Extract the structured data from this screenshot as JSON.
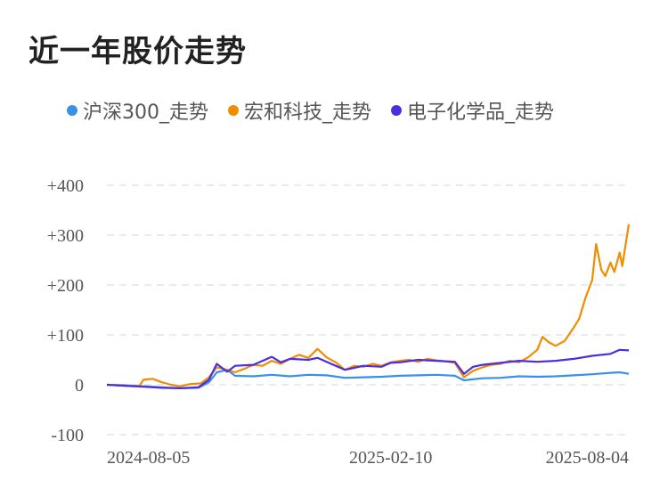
{
  "page": {
    "title": "近一年股价走势"
  },
  "colors": {
    "hs300": "#3a8fe8",
    "hongda": "#f08c00",
    "chem": "#4a2ee0",
    "grid": "#e4e4e4",
    "axis": "#555555"
  },
  "chart_data": {
    "type": "line",
    "title": "近一年股价走势",
    "xlabel": "",
    "ylabel": "",
    "ylim": [
      -100,
      400
    ],
    "yticks": [
      {
        "value": 400,
        "label": "+400"
      },
      {
        "value": 300,
        "label": "+300"
      },
      {
        "value": 200,
        "label": "+200"
      },
      {
        "value": 100,
        "label": "+100"
      },
      {
        "value": 0,
        "label": "0"
      },
      {
        "value": -100,
        "label": "-100"
      }
    ],
    "xlim": [
      "2024-07-08",
      "2025-08-11"
    ],
    "xticks": [
      "2024-08-05",
      "2025-02-10",
      "2025-08-04"
    ],
    "legend": "top",
    "grid": true,
    "series": [
      {
        "name": "沪深300_走势",
        "color": "#3a8fe8",
        "points": [
          [
            "2024-07-08",
            0
          ],
          [
            "2024-07-22",
            -1
          ],
          [
            "2024-08-05",
            -3
          ],
          [
            "2024-08-19",
            -5
          ],
          [
            "2024-09-02",
            -7
          ],
          [
            "2024-09-16",
            -6
          ],
          [
            "2024-09-24",
            5
          ],
          [
            "2024-09-30",
            25
          ],
          [
            "2024-10-08",
            30
          ],
          [
            "2024-10-14",
            18
          ],
          [
            "2024-10-28",
            17
          ],
          [
            "2024-11-11",
            20
          ],
          [
            "2024-11-25",
            17
          ],
          [
            "2024-12-09",
            20
          ],
          [
            "2024-12-23",
            19
          ],
          [
            "2025-01-06",
            14
          ],
          [
            "2025-01-20",
            15
          ],
          [
            "2025-02-03",
            16
          ],
          [
            "2025-02-17",
            18
          ],
          [
            "2025-03-03",
            19
          ],
          [
            "2025-03-17",
            20
          ],
          [
            "2025-03-31",
            18
          ],
          [
            "2025-04-07",
            9
          ],
          [
            "2025-04-21",
            13
          ],
          [
            "2025-05-05",
            14
          ],
          [
            "2025-05-19",
            17
          ],
          [
            "2025-06-02",
            16
          ],
          [
            "2025-06-16",
            17
          ],
          [
            "2025-06-30",
            19
          ],
          [
            "2025-07-14",
            21
          ],
          [
            "2025-07-28",
            24
          ],
          [
            "2025-08-04",
            25
          ],
          [
            "2025-08-11",
            22
          ]
        ]
      },
      {
        "name": "宏和科技_走势",
        "color": "#f08c00",
        "points": [
          [
            "2024-07-08",
            0
          ],
          [
            "2024-07-15",
            -1
          ],
          [
            "2024-07-22",
            -2
          ],
          [
            "2024-07-29",
            -3
          ],
          [
            "2024-08-02",
            -2
          ],
          [
            "2024-08-05",
            10
          ],
          [
            "2024-08-12",
            12
          ],
          [
            "2024-08-19",
            5
          ],
          [
            "2024-08-26",
            0
          ],
          [
            "2024-09-02",
            -3
          ],
          [
            "2024-09-09",
            1
          ],
          [
            "2024-09-18",
            3
          ],
          [
            "2024-09-24",
            15
          ],
          [
            "2024-09-30",
            35
          ],
          [
            "2024-10-08",
            30
          ],
          [
            "2024-10-14",
            25
          ],
          [
            "2024-10-21",
            32
          ],
          [
            "2024-10-28",
            40
          ],
          [
            "2024-11-04",
            38
          ],
          [
            "2024-11-11",
            48
          ],
          [
            "2024-11-18",
            42
          ],
          [
            "2024-11-25",
            52
          ],
          [
            "2024-12-02",
            60
          ],
          [
            "2024-12-09",
            54
          ],
          [
            "2024-12-16",
            72
          ],
          [
            "2024-12-23",
            55
          ],
          [
            "2024-12-30",
            45
          ],
          [
            "2025-01-06",
            30
          ],
          [
            "2025-01-13",
            38
          ],
          [
            "2025-01-20",
            36
          ],
          [
            "2025-01-27",
            42
          ],
          [
            "2025-02-03",
            38
          ],
          [
            "2025-02-10",
            45
          ],
          [
            "2025-02-17",
            48
          ],
          [
            "2025-02-24",
            50
          ],
          [
            "2025-03-03",
            46
          ],
          [
            "2025-03-10",
            52
          ],
          [
            "2025-03-17",
            49
          ],
          [
            "2025-03-24",
            47
          ],
          [
            "2025-03-31",
            44
          ],
          [
            "2025-04-07",
            15
          ],
          [
            "2025-04-14",
            28
          ],
          [
            "2025-04-21",
            35
          ],
          [
            "2025-04-28",
            40
          ],
          [
            "2025-05-05",
            42
          ],
          [
            "2025-05-12",
            48
          ],
          [
            "2025-05-19",
            45
          ],
          [
            "2025-05-26",
            55
          ],
          [
            "2025-06-02",
            70
          ],
          [
            "2025-06-06",
            96
          ],
          [
            "2025-06-11",
            85
          ],
          [
            "2025-06-16",
            78
          ],
          [
            "2025-06-23",
            88
          ],
          [
            "2025-06-30",
            115
          ],
          [
            "2025-07-04",
            132
          ],
          [
            "2025-07-09",
            175
          ],
          [
            "2025-07-14",
            210
          ],
          [
            "2025-07-17",
            282
          ],
          [
            "2025-07-21",
            230
          ],
          [
            "2025-07-24",
            218
          ],
          [
            "2025-07-28",
            245
          ],
          [
            "2025-07-31",
            226
          ],
          [
            "2025-08-04",
            265
          ],
          [
            "2025-08-06",
            238
          ],
          [
            "2025-08-11",
            322
          ]
        ]
      },
      {
        "name": "电子化学品_走势",
        "color": "#4a2ee0",
        "points": [
          [
            "2024-07-08",
            0
          ],
          [
            "2024-07-22",
            -2
          ],
          [
            "2024-08-05",
            -4
          ],
          [
            "2024-08-19",
            -6
          ],
          [
            "2024-09-02",
            -7
          ],
          [
            "2024-09-16",
            -5
          ],
          [
            "2024-09-24",
            10
          ],
          [
            "2024-09-30",
            42
          ],
          [
            "2024-10-08",
            26
          ],
          [
            "2024-10-14",
            38
          ],
          [
            "2024-10-28",
            40
          ],
          [
            "2024-11-11",
            56
          ],
          [
            "2024-11-18",
            45
          ],
          [
            "2024-11-25",
            52
          ],
          [
            "2024-12-09",
            50
          ],
          [
            "2024-12-16",
            54
          ],
          [
            "2024-12-23",
            46
          ],
          [
            "2025-01-06",
            30
          ],
          [
            "2025-01-13",
            34
          ],
          [
            "2025-01-20",
            38
          ],
          [
            "2025-02-03",
            36
          ],
          [
            "2025-02-10",
            44
          ],
          [
            "2025-02-17",
            45
          ],
          [
            "2025-03-03",
            50
          ],
          [
            "2025-03-17",
            48
          ],
          [
            "2025-03-31",
            46
          ],
          [
            "2025-04-07",
            22
          ],
          [
            "2025-04-14",
            36
          ],
          [
            "2025-04-21",
            40
          ],
          [
            "2025-05-05",
            44
          ],
          [
            "2025-05-19",
            48
          ],
          [
            "2025-06-02",
            46
          ],
          [
            "2025-06-16",
            48
          ],
          [
            "2025-06-30",
            52
          ],
          [
            "2025-07-14",
            58
          ],
          [
            "2025-07-28",
            62
          ],
          [
            "2025-08-04",
            70
          ],
          [
            "2025-08-11",
            69
          ]
        ]
      }
    ]
  }
}
